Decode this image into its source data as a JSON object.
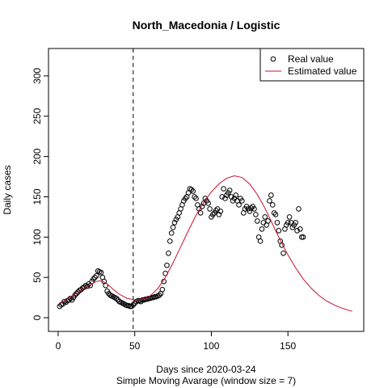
{
  "chart_data": {
    "type": "scatter-line",
    "title": "North_Macedonia / Logistic",
    "xlabel": "Days since 2020-03-24",
    "subtitle": "Simple Moving Avarage (window size = 7)",
    "ylabel": "Daily cases",
    "xlim": [
      -6.3,
      199.5
    ],
    "ylim": [
      -17,
      334
    ],
    "xticks": [
      0,
      50,
      100,
      150
    ],
    "yticks": [
      0,
      50,
      100,
      150,
      200,
      250,
      300
    ],
    "vline": 49,
    "legend": "top-right",
    "series": [
      {
        "name": "Real value",
        "color": "#000000",
        "marker": "circle",
        "x": [
          1,
          2,
          3,
          4,
          5,
          6,
          7,
          8,
          9,
          10,
          11,
          12,
          13,
          14,
          15,
          16,
          17,
          18,
          19,
          20,
          21,
          22,
          23,
          24,
          25,
          26,
          27,
          28,
          29,
          30,
          31,
          32,
          33,
          34,
          35,
          36,
          37,
          38,
          39,
          40,
          41,
          42,
          43,
          44,
          45,
          46,
          47,
          48,
          49,
          50,
          51,
          52,
          53,
          54,
          55,
          56,
          57,
          58,
          59,
          60,
          61,
          62,
          63,
          64,
          65,
          66,
          67,
          68,
          69,
          70,
          71,
          72,
          73,
          74,
          75,
          76,
          77,
          78,
          79,
          80,
          81,
          82,
          83,
          84,
          85,
          86,
          87,
          88,
          89,
          90,
          91,
          92,
          93,
          94,
          95,
          96,
          97,
          98,
          99,
          100,
          101,
          102,
          103,
          104,
          105,
          106,
          107,
          108,
          109,
          110,
          111,
          112,
          113,
          114,
          115,
          116,
          117,
          118,
          119,
          120,
          121,
          122,
          123,
          124,
          125,
          126,
          127,
          128,
          129,
          130,
          131,
          132,
          133,
          134,
          135,
          136,
          137,
          138,
          139,
          140,
          141,
          142,
          143,
          144,
          145,
          146,
          147,
          148,
          149,
          150,
          151,
          152,
          153,
          154,
          155,
          156,
          157,
          158,
          159,
          160
        ],
        "values": [
          14,
          16,
          17,
          20,
          19,
          21,
          22,
          24,
          22,
          25,
          28,
          30,
          32,
          34,
          35,
          37,
          38,
          40,
          39,
          42,
          40,
          45,
          48,
          50,
          52,
          58,
          57,
          56,
          50,
          45,
          40,
          33,
          30,
          28,
          27,
          26,
          25,
          24,
          22,
          20,
          19,
          18,
          17,
          16,
          15,
          15,
          14,
          14,
          16,
          18,
          20,
          21,
          21,
          20,
          22,
          22,
          23,
          23,
          24,
          24,
          25,
          25,
          26,
          26,
          27,
          28,
          30,
          35,
          45,
          55,
          65,
          80,
          95,
          105,
          112,
          118,
          122,
          125,
          130,
          135,
          140,
          145,
          148,
          150,
          155,
          160,
          159,
          157,
          150,
          148,
          140,
          135,
          130,
          138,
          142,
          148,
          145,
          142,
          135,
          125,
          128,
          130,
          133,
          135,
          128,
          132,
          150,
          160,
          148,
          152,
          155,
          158,
          150,
          145,
          148,
          152,
          145,
          140,
          148,
          145,
          130,
          135,
          138,
          135,
          132,
          136,
          138,
          135,
          128,
          120,
          100,
          95,
          110,
          118,
          125,
          115,
          120,
          145,
          152,
          140,
          130,
          128,
          118,
          108,
          95,
          90,
          80,
          110,
          115,
          118,
          125,
          118,
          112,
          115,
          118,
          108,
          135,
          110,
          100,
          100
        ]
      },
      {
        "name": "Estimated value",
        "color": "#c8102e",
        "marker": "line",
        "x": [
          1,
          5,
          10,
          15,
          20,
          25,
          28,
          32,
          36,
          40,
          45,
          50,
          55,
          60,
          65,
          70,
          75,
          80,
          85,
          90,
          95,
          100,
          105,
          110,
          115,
          120,
          125,
          130,
          135,
          140,
          145,
          150,
          155,
          160,
          165,
          170,
          175,
          180,
          185,
          190,
          192
        ],
        "values": [
          17,
          22,
          28,
          34,
          40,
          45,
          46,
          42,
          35,
          29,
          24,
          22,
          23,
          27,
          36,
          50,
          68,
          88,
          108,
          127,
          143,
          156,
          166,
          173,
          176,
          174,
          166,
          153,
          136,
          116,
          96,
          78,
          62,
          48,
          37,
          28,
          21,
          16,
          12,
          9,
          8
        ]
      }
    ]
  }
}
